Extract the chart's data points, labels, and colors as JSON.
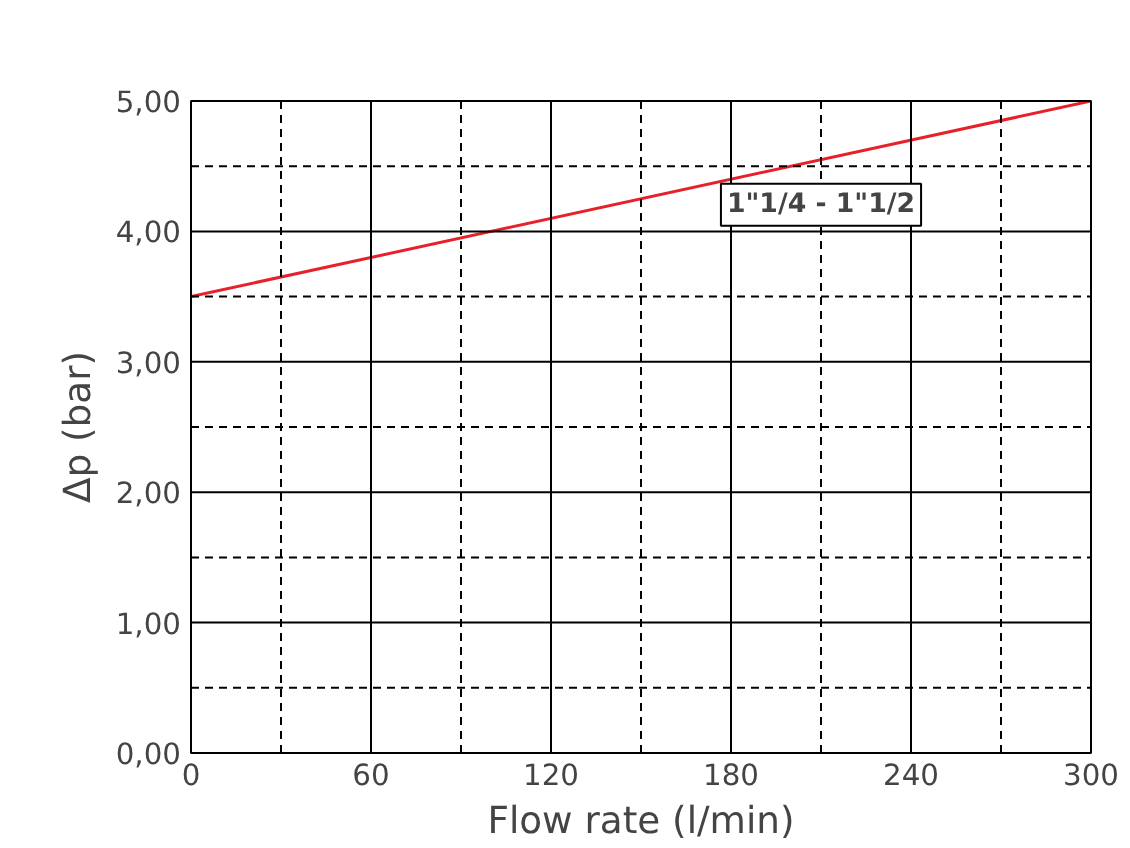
{
  "chart_data": {
    "type": "line",
    "xlabel": "Flow rate (l/min)",
    "ylabel": "Δp (bar)",
    "x": [
      0,
      300
    ],
    "series": [
      {
        "name": "1\"1/4 - 1\"1/2",
        "color": "#e8202a",
        "values": [
          3.5,
          5.0
        ]
      }
    ],
    "xlim": [
      0,
      300
    ],
    "ylim": [
      0,
      5
    ],
    "xticks": [
      0,
      {
        "value": 30,
        "label": null
      },
      60,
      {
        "value": 90,
        "label": null
      },
      120,
      {
        "value": 150,
        "label": null
      },
      180,
      {
        "value": 210,
        "label": null
      },
      240,
      {
        "value": 270,
        "label": null
      },
      300
    ],
    "yticks": [
      {
        "value": 0,
        "label": "0,00"
      },
      {
        "value": 0.5,
        "label": null
      },
      {
        "value": 1,
        "label": "1,00"
      },
      {
        "value": 1.5,
        "label": null
      },
      {
        "value": 2,
        "label": "2,00"
      },
      {
        "value": 2.5,
        "label": null
      },
      {
        "value": 3,
        "label": "3,00"
      },
      {
        "value": 3.5,
        "label": null
      },
      {
        "value": 4,
        "label": "4,00"
      },
      {
        "value": 4.5,
        "label": null
      },
      {
        "value": 5,
        "label": "5,00"
      }
    ],
    "grid": true,
    "legend": false,
    "line_style": "solid",
    "marker": "none"
  }
}
